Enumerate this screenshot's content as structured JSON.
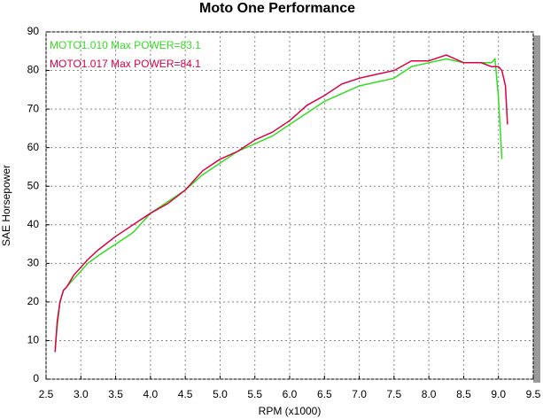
{
  "chart_data": {
    "type": "line",
    "title": "Moto One Performance",
    "x_label": "RPM (x1000)",
    "y_label": "SAE Horsepower",
    "xlim": [
      2.5,
      9.5
    ],
    "ylim": [
      0,
      90
    ],
    "xticks": [
      2.5,
      {
        "value": 3,
        "label": "3.0"
      },
      3.5,
      {
        "value": 4,
        "label": "4.0"
      },
      4.5,
      {
        "value": 5,
        "label": "5.0"
      },
      5.5,
      {
        "value": 6,
        "label": "6.0"
      },
      6.5,
      {
        "value": 7,
        "label": "7.0"
      },
      7.5,
      {
        "value": 8,
        "label": "8.0"
      },
      8.5,
      {
        "value": 9,
        "label": "9.0"
      },
      9.5
    ],
    "yticks": [
      0,
      10,
      20,
      30,
      40,
      50,
      60,
      70,
      80,
      90
    ],
    "grid": true,
    "legend": "top-left",
    "series": [
      {
        "name": "MOTO1.010  Max POWER=83.1",
        "color": "#33dd22",
        "x": [
          2.63,
          2.65,
          2.7,
          2.75,
          2.8,
          2.9,
          3.0,
          3.1,
          3.25,
          3.5,
          3.75,
          4.0,
          4.25,
          4.5,
          4.75,
          5.0,
          5.25,
          5.5,
          5.75,
          6.0,
          6.25,
          6.5,
          6.75,
          7.0,
          7.25,
          7.5,
          7.75,
          8.0,
          8.25,
          8.5,
          8.75,
          8.9,
          8.95,
          9.0,
          9.05
        ],
        "values": [
          8,
          12,
          20,
          23,
          24,
          26,
          28,
          30,
          32,
          35,
          38,
          43,
          46,
          49,
          53,
          56,
          59,
          61,
          63,
          66,
          69,
          72,
          74,
          76,
          77,
          78,
          81,
          82,
          83,
          82,
          82,
          82,
          83,
          73,
          57
        ]
      },
      {
        "name": "MOTO1.017  Max POWER=84.1",
        "color": "#dd0044",
        "x": [
          2.63,
          2.66,
          2.7,
          2.75,
          2.8,
          2.9,
          3.0,
          3.1,
          3.25,
          3.5,
          3.75,
          4.0,
          4.25,
          4.5,
          4.75,
          5.0,
          5.25,
          5.5,
          5.75,
          6.0,
          6.25,
          6.5,
          6.75,
          7.0,
          7.25,
          7.5,
          7.75,
          8.0,
          8.25,
          8.5,
          8.75,
          8.9,
          9.0,
          9.05,
          9.1,
          9.13
        ],
        "values": [
          7,
          15,
          20,
          23,
          24,
          27,
          29,
          31,
          33.5,
          37,
          40,
          43,
          45.5,
          49,
          54,
          57,
          59,
          62,
          64,
          67,
          71,
          73.5,
          76.5,
          78,
          79,
          80,
          82.5,
          82.5,
          84,
          82,
          82,
          81,
          81,
          80,
          76,
          66
        ]
      }
    ]
  }
}
